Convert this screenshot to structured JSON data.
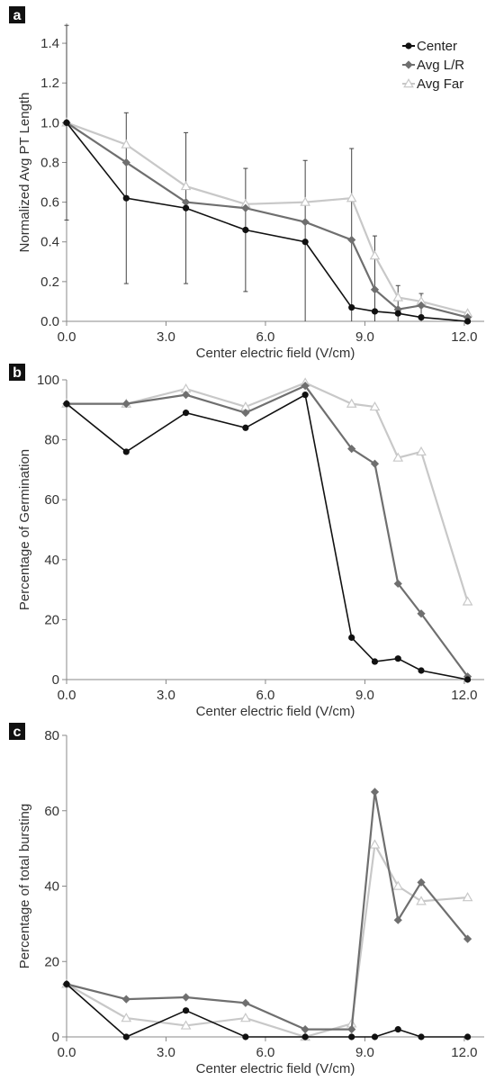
{
  "colors": {
    "center": "#111111",
    "avg_lr": "#6f6f6f",
    "avg_far": "#c8c8c8",
    "axis": "#888888",
    "error_bar": "#444444"
  },
  "chart_data": [
    {
      "type": "line",
      "panel_label": "a",
      "title": "",
      "xlabel": "Center electric field (V/cm)",
      "ylabel": "Normalized Avg PT  Length",
      "xlim": [
        0,
        12.6
      ],
      "ylim": [
        0,
        1.5
      ],
      "xticks": [
        0,
        3,
        6,
        9,
        12
      ],
      "xtick_labels": [
        "0.0",
        "3.0",
        "6.0",
        "9.0",
        "12.0"
      ],
      "yticks": [
        0,
        0.2,
        0.4,
        0.6,
        0.8,
        1.0,
        1.2,
        1.4
      ],
      "ytick_labels": [
        "0.0",
        "0.2",
        "0.4",
        "0.6",
        "0.8",
        "1.0",
        "1.2",
        "1.4"
      ],
      "grid": false,
      "legend": "top-right",
      "x": [
        0,
        1.8,
        3.6,
        5.4,
        7.2,
        8.6,
        9.3,
        10.0,
        10.7,
        12.1
      ],
      "series": [
        {
          "name": "Center",
          "marker": "circle",
          "values": [
            1.0,
            0.62,
            0.57,
            0.46,
            0.4,
            0.07,
            0.05,
            0.04,
            0.02,
            0.0
          ],
          "error": [
            0.49,
            0.43,
            0.38,
            0.31,
            0.41,
            0.8,
            0.38,
            0.14,
            0.12,
            0.03
          ]
        },
        {
          "name": "Avg L/R",
          "marker": "diamond",
          "values": [
            1.0,
            0.8,
            0.6,
            0.57,
            0.5,
            0.41,
            0.16,
            0.06,
            0.08,
            0.02
          ]
        },
        {
          "name": "Avg Far",
          "marker": "triangle",
          "values": [
            1.0,
            0.89,
            0.68,
            0.59,
            0.6,
            0.62,
            0.33,
            0.12,
            0.1,
            0.04
          ]
        }
      ]
    },
    {
      "type": "line",
      "panel_label": "b",
      "title": "",
      "xlabel": "Center electric field (V/cm)",
      "ylabel": "Percentage of Germination",
      "xlim": [
        0,
        12.6
      ],
      "ylim": [
        0,
        100
      ],
      "xticks": [
        0,
        3,
        6,
        9,
        12
      ],
      "xtick_labels": [
        "0.0",
        "3.0",
        "6.0",
        "9.0",
        "12.0"
      ],
      "yticks": [
        0,
        20,
        40,
        60,
        80,
        100
      ],
      "ytick_labels": [
        "0",
        "20",
        "40",
        "60",
        "80",
        "100"
      ],
      "grid": false,
      "x": [
        0,
        1.8,
        3.6,
        5.4,
        7.2,
        8.6,
        9.3,
        10.0,
        10.7,
        12.1
      ],
      "series": [
        {
          "name": "Center",
          "marker": "circle",
          "values": [
            92,
            76,
            89,
            84,
            95,
            14,
            6,
            7,
            3,
            0
          ]
        },
        {
          "name": "Avg L/R",
          "marker": "diamond",
          "values": [
            92,
            92,
            95,
            89,
            98,
            77,
            72,
            32,
            22,
            1
          ]
        },
        {
          "name": "Avg Far",
          "marker": "triangle",
          "values": [
            92,
            92,
            97,
            91,
            99,
            92,
            91,
            74,
            76,
            26
          ]
        }
      ]
    },
    {
      "type": "line",
      "panel_label": "c",
      "title": "",
      "xlabel": "Center electric field (V/cm)",
      "ylabel": "Percentage of total bursting",
      "xlim": [
        0,
        12.6
      ],
      "ylim": [
        0,
        80
      ],
      "xticks": [
        0,
        3,
        6,
        9,
        12
      ],
      "xtick_labels": [
        "0.0",
        "3.0",
        "6.0",
        "9.0",
        "12.0"
      ],
      "yticks": [
        0,
        20,
        40,
        60,
        80
      ],
      "ytick_labels": [
        "0",
        "20",
        "40",
        "60",
        "80"
      ],
      "grid": false,
      "x": [
        0,
        1.8,
        3.6,
        5.4,
        7.2,
        8.6,
        9.3,
        10.0,
        10.7,
        12.1
      ],
      "series": [
        {
          "name": "Center",
          "marker": "circle",
          "values": [
            14,
            0,
            7,
            0,
            0,
            0,
            0,
            2,
            0,
            0
          ]
        },
        {
          "name": "Avg L/R",
          "marker": "diamond",
          "values": [
            14,
            10,
            10.5,
            9,
            2,
            2,
            65,
            31,
            41,
            26
          ]
        },
        {
          "name": "Avg Far",
          "marker": "triangle",
          "values": [
            14,
            5,
            3,
            5,
            0,
            3.5,
            51,
            40,
            36,
            37
          ]
        }
      ]
    }
  ]
}
